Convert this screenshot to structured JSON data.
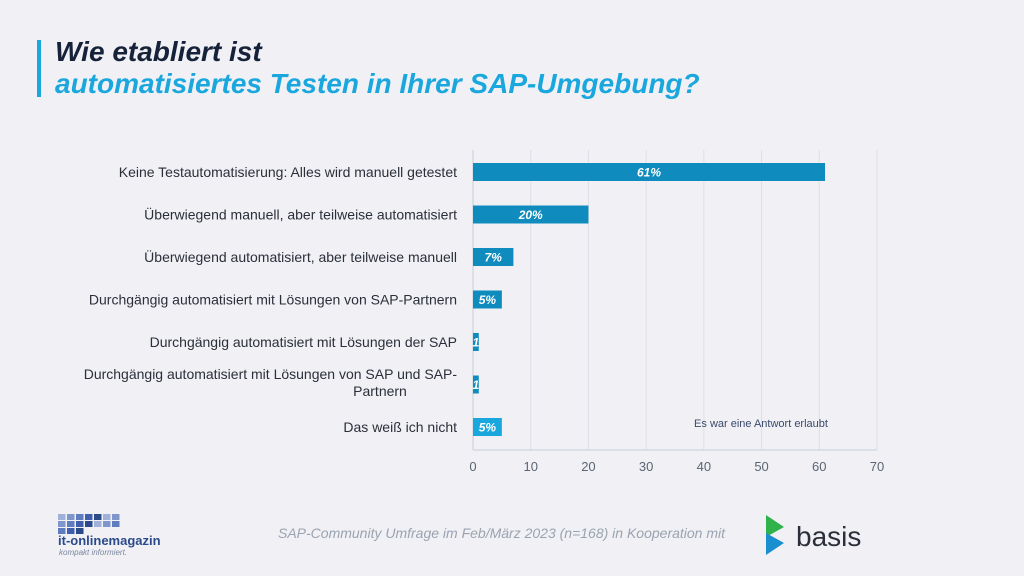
{
  "header": {
    "title_line1": "Wie etabliert ist",
    "title_line2": "automatisiertes Testen in Ihrer SAP-Umgebung?"
  },
  "chart_data": {
    "type": "bar",
    "orientation": "horizontal",
    "categories": [
      [
        "Keine Testautomatisierung: Alles wird manuell getestet"
      ],
      [
        "Überwiegend manuell, aber teilweise automatisiert"
      ],
      [
        "Überwiegend automatisiert, aber teilweise manuell"
      ],
      [
        "Durchgängig automatisiert mit Lösungen von SAP-Partnern"
      ],
      [
        "Durchgängig automatisiert mit Lösungen der SAP"
      ],
      [
        "Durchgängig automatisiert mit Lösungen von SAP und SAP-",
        "Partnern"
      ],
      [
        "Das weiß ich nicht"
      ]
    ],
    "values": [
      61,
      20,
      7,
      5,
      1,
      1,
      5
    ],
    "data_labels": [
      "61%",
      "20%",
      "7%",
      "5%",
      "1",
      "1",
      "5%"
    ],
    "xlim": [
      0,
      70
    ],
    "x_ticks": [
      0,
      10,
      20,
      30,
      40,
      50,
      60,
      70
    ],
    "grid": true,
    "colors": [
      "#0f8bbd",
      "#0f8bbd",
      "#0f8bbd",
      "#0f8bbd",
      "#0f8bbd",
      "#0f8bbd",
      "#1aa7dd"
    ],
    "annotation": "Es war eine Antwort erlaubt"
  },
  "footer": {
    "note": "SAP-Community Umfrage im Feb/März 2023 (n=168) in Kooperation mit",
    "logo_left_name": "it-onlinemagazin",
    "logo_left_tagline": "kompakt informiert.",
    "logo_right_name": "basis"
  },
  "colors": {
    "accent": "#1aa7dd",
    "bar": "#0f8bbd",
    "title_dark": "#16223a"
  }
}
